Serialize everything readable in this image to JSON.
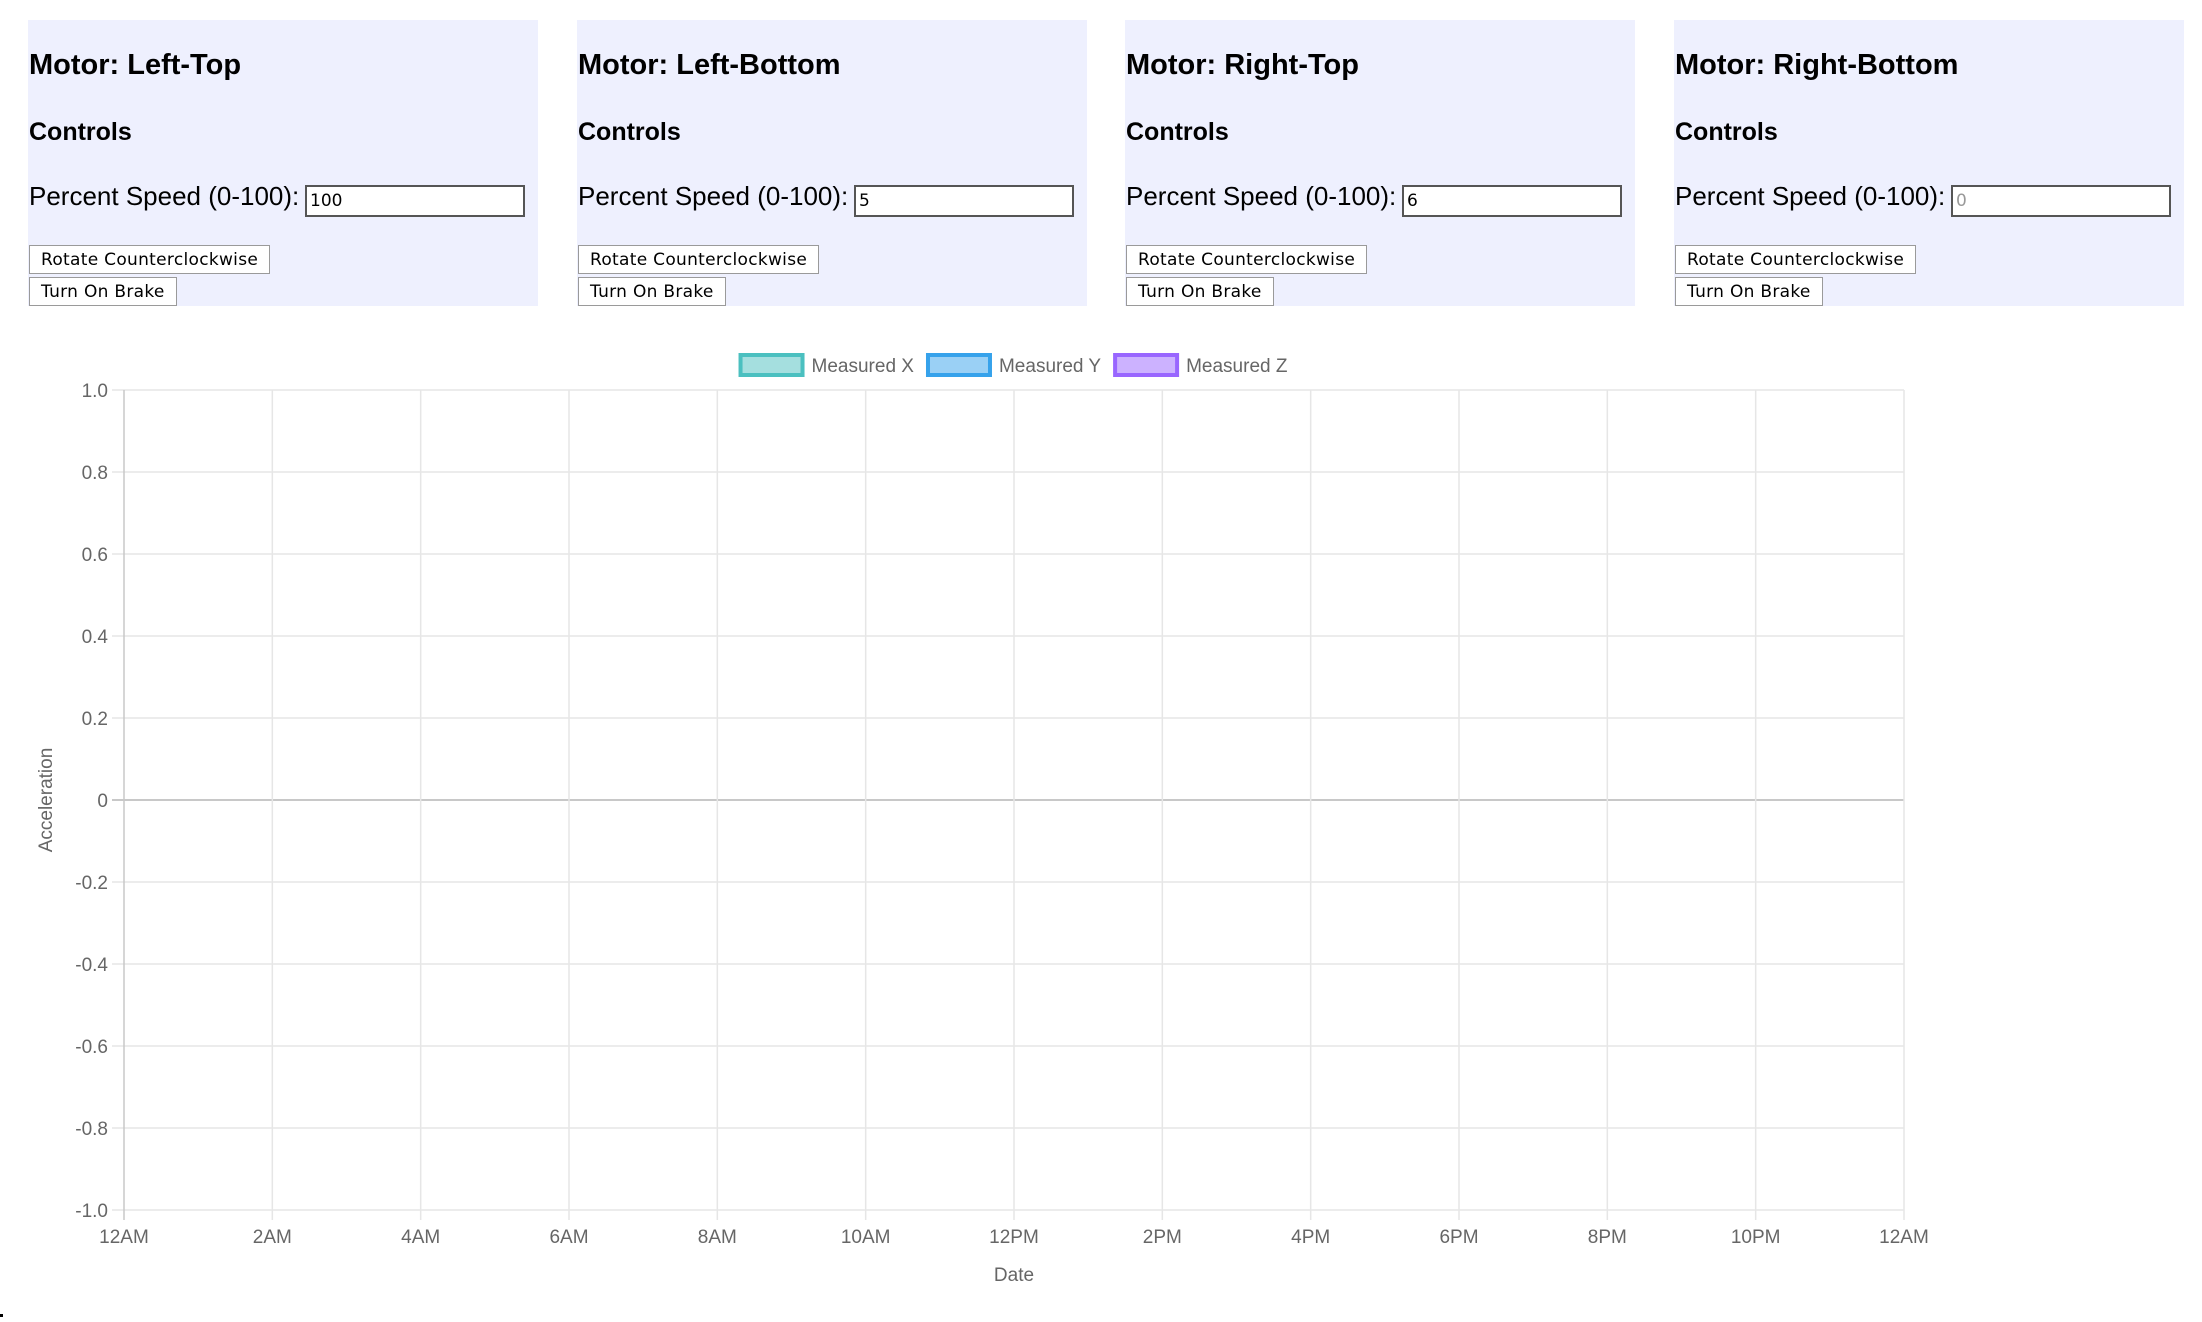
{
  "motors": [
    {
      "title": "Motor: Left-Top",
      "controls_heading": "Controls",
      "speed_label": "Percent Speed (0-100):",
      "speed_value": "100",
      "speed_placeholder": "",
      "rotate_label": "Rotate Counterclockwise",
      "brake_label": "Turn On Brake"
    },
    {
      "title": "Motor: Left-Bottom",
      "controls_heading": "Controls",
      "speed_label": "Percent Speed (0-100):",
      "speed_value": "5",
      "speed_placeholder": "",
      "rotate_label": "Rotate Counterclockwise",
      "brake_label": "Turn On Brake"
    },
    {
      "title": "Motor: Right-Top",
      "controls_heading": "Controls",
      "speed_label": "Percent Speed (0-100):",
      "speed_value": "6",
      "speed_placeholder": "",
      "rotate_label": "Rotate Counterclockwise",
      "brake_label": "Turn On Brake"
    },
    {
      "title": "Motor: Right-Bottom",
      "controls_heading": "Controls",
      "speed_label": "Percent Speed (0-100):",
      "speed_value": "",
      "speed_placeholder": "0",
      "rotate_label": "Rotate Counterclockwise",
      "brake_label": "Turn On Brake"
    }
  ],
  "panel_color": "#eef0fe",
  "chart_data": {
    "type": "line",
    "title": "",
    "xlabel": "Date",
    "ylabel": "Acceleration",
    "x_ticks": [
      "12AM",
      "2AM",
      "4AM",
      "6AM",
      "8AM",
      "10AM",
      "12PM",
      "2PM",
      "4PM",
      "6PM",
      "8PM",
      "10PM",
      "12AM"
    ],
    "y_ticks": [
      "1.0",
      "0.8",
      "0.6",
      "0.4",
      "0.2",
      "0",
      "-0.2",
      "-0.4",
      "-0.6",
      "-0.8",
      "-1.0"
    ],
    "ylim": [
      -1.0,
      1.0
    ],
    "grid": true,
    "legend_position": "top",
    "series": [
      {
        "name": "Measured X",
        "border_color": "#4bc0c0",
        "fill_color": "#a5dfdf",
        "values": []
      },
      {
        "name": "Measured Y",
        "border_color": "#36a2eb",
        "fill_color": "#9ad0f5",
        "values": []
      },
      {
        "name": "Measured Z",
        "border_color": "#9966ff",
        "fill_color": "#ccb2ff",
        "values": []
      }
    ]
  }
}
